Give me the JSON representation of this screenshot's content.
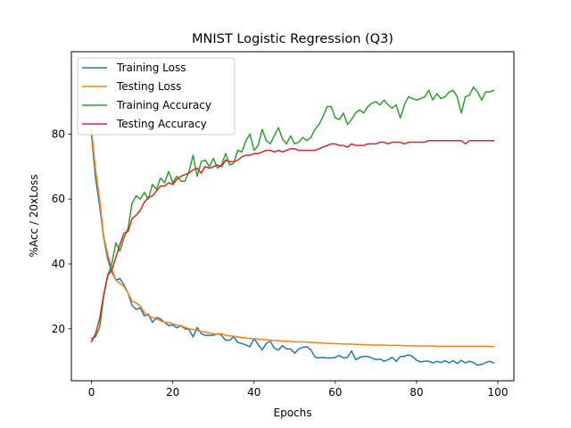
{
  "chart_data": {
    "type": "line",
    "title": "MNIST Logistic Regression (Q3)",
    "xlabel": "Epochs",
    "ylabel": "%Acc / 20xLoss",
    "xlim": [
      -4.95,
      103.95
    ],
    "ylim": [
      4.0,
      105.4
    ],
    "xticks": [
      0,
      20,
      40,
      60,
      80,
      100
    ],
    "yticks": [
      20,
      40,
      60,
      80
    ],
    "grid": false,
    "legend_position": "upper-left",
    "series": [
      {
        "name": "Training Loss",
        "color": "#1f77b4",
        "values": [
          79.8,
          66.5,
          58.0,
          48.0,
          41.5,
          37.5,
          35.0,
          35.5,
          33.5,
          31.0,
          27.2,
          26.0,
          26.5,
          24.0,
          24.5,
          22.0,
          23.5,
          23.0,
          22.0,
          21.0,
          21.2,
          20.3,
          21.0,
          20.0,
          19.8,
          17.5,
          20.4,
          18.5,
          18.0,
          18.0,
          18.0,
          18.5,
          18.0,
          16.5,
          16.5,
          17.6,
          15.8,
          15.5,
          15.0,
          14.5,
          17.0,
          15.2,
          13.5,
          15.5,
          16.2,
          14.0,
          13.5,
          14.8,
          13.8,
          13.8,
          12.5,
          13.8,
          14.3,
          14.5,
          13.5,
          11.3,
          11.0,
          11.2,
          11.0,
          11.0,
          11.2,
          11.8,
          11.0,
          11.2,
          13.2,
          10.5,
          11.2,
          11.5,
          11.5,
          11.0,
          10.5,
          10.7,
          10.0,
          10.5,
          11.2,
          10.0,
          11.5,
          11.5,
          12.0,
          11.5,
          10.3,
          9.8,
          10.0,
          10.0,
          9.5,
          10.0,
          9.6,
          10.2,
          9.5,
          10.2,
          9.3,
          10.3,
          9.5,
          10.0,
          9.6,
          8.8,
          9.0,
          9.6,
          10.0,
          9.5
        ]
      },
      {
        "name": "Testing Loss",
        "color": "#ff7f0e",
        "values": [
          81.5,
          69.0,
          60.0,
          48.5,
          43.0,
          38.5,
          35.0,
          34.0,
          33.0,
          31.0,
          28.5,
          28.0,
          27.0,
          25.0,
          24.0,
          23.5,
          23.0,
          22.5,
          22.0,
          22.0,
          21.5,
          21.2,
          20.8,
          20.5,
          20.0,
          19.8,
          19.5,
          19.2,
          19.0,
          18.7,
          18.5,
          18.3,
          18.5,
          18.0,
          17.8,
          17.7,
          17.5,
          17.3,
          17.2,
          17.0,
          17.0,
          16.8,
          16.7,
          16.6,
          16.5,
          16.4,
          16.4,
          16.2,
          16.2,
          16.1,
          16.0,
          16.0,
          16.0,
          15.9,
          15.8,
          15.8,
          15.7,
          15.6,
          15.5,
          15.5,
          15.4,
          15.4,
          15.3,
          15.3,
          15.3,
          15.2,
          15.2,
          15.1,
          15.1,
          15.0,
          15.0,
          15.0,
          15.0,
          14.9,
          14.9,
          14.9,
          14.9,
          14.8,
          14.8,
          14.8,
          14.7,
          14.7,
          14.7,
          14.7,
          14.7,
          14.6,
          14.6,
          14.6,
          14.6,
          14.6,
          14.6,
          14.6,
          14.6,
          14.6,
          14.6,
          14.6,
          14.6,
          14.6,
          14.6,
          14.5
        ]
      },
      {
        "name": "Training Accuracy",
        "color": "#2ca02c",
        "values": [
          17.0,
          17.5,
          20.5,
          30.0,
          36.5,
          40.0,
          46.5,
          44.0,
          48.0,
          51.0,
          58.8,
          61.0,
          60.0,
          62.0,
          60.0,
          64.5,
          63.0,
          66.5,
          65.0,
          68.5,
          65.0,
          67.0,
          65.5,
          65.5,
          68.5,
          73.5,
          67.0,
          71.5,
          72.0,
          70.0,
          72.5,
          69.5,
          70.5,
          74.0,
          70.5,
          71.0,
          75.0,
          74.5,
          78.0,
          80.0,
          75.0,
          76.5,
          81.5,
          78.0,
          77.0,
          79.5,
          82.0,
          78.5,
          77.0,
          79.5,
          77.0,
          77.5,
          79.0,
          78.0,
          79.0,
          81.5,
          83.0,
          85.5,
          88.5,
          88.5,
          85.0,
          84.5,
          86.5,
          83.0,
          84.5,
          86.5,
          87.5,
          86.5,
          88.5,
          89.5,
          90.0,
          89.0,
          90.5,
          89.0,
          88.0,
          89.0,
          85.0,
          89.0,
          91.5,
          91.0,
          90.5,
          91.0,
          91.5,
          93.5,
          90.5,
          92.5,
          91.0,
          91.5,
          93.0,
          93.5,
          91.5,
          86.5,
          91.5,
          92.0,
          94.5,
          93.0,
          90.5,
          93.0,
          93.0,
          93.5
        ]
      },
      {
        "name": "Testing Accuracy",
        "color": "#d62728",
        "values": [
          16.0,
          18.5,
          23.0,
          30.5,
          36.5,
          38.0,
          42.0,
          46.0,
          49.5,
          50.0,
          54.0,
          55.0,
          56.5,
          59.0,
          60.5,
          61.0,
          62.5,
          64.0,
          64.0,
          65.0,
          64.5,
          66.0,
          67.0,
          67.5,
          68.0,
          69.0,
          69.5,
          68.0,
          70.0,
          69.5,
          70.0,
          70.5,
          70.0,
          72.0,
          71.5,
          71.5,
          72.0,
          73.0,
          73.5,
          73.5,
          74.0,
          74.0,
          74.5,
          75.0,
          75.0,
          74.5,
          75.0,
          74.5,
          75.0,
          75.5,
          75.5,
          75.0,
          75.0,
          75.0,
          75.0,
          75.0,
          75.5,
          76.0,
          76.5,
          77.0,
          77.0,
          76.5,
          76.5,
          76.0,
          77.0,
          76.5,
          76.5,
          76.5,
          77.0,
          77.0,
          77.0,
          77.5,
          77.5,
          77.0,
          77.5,
          77.5,
          77.5,
          77.0,
          77.5,
          77.5,
          77.5,
          77.5,
          77.5,
          78.0,
          78.0,
          78.0,
          78.0,
          78.0,
          78.0,
          78.0,
          78.0,
          78.0,
          77.0,
          78.0,
          78.0,
          78.0,
          78.0,
          78.0,
          78.0,
          78.0
        ]
      }
    ]
  }
}
